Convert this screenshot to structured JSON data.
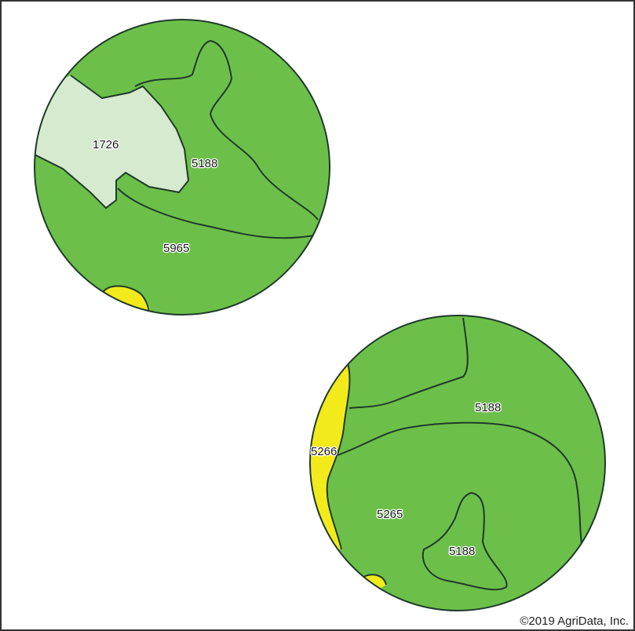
{
  "colors": {
    "soil_green": "#6cc04a",
    "soil_light": "#d6ead0",
    "soil_yellow": "#f3ea1c",
    "boundary": "#1f3a2a"
  },
  "field_north": {
    "labels": {
      "a": "1726",
      "b": "5188",
      "c": "5965"
    }
  },
  "field_south": {
    "labels": {
      "a": "5188",
      "b": "5266",
      "c": "5265",
      "d": "5188"
    }
  },
  "copyright": "©2019 AgriData, Inc."
}
